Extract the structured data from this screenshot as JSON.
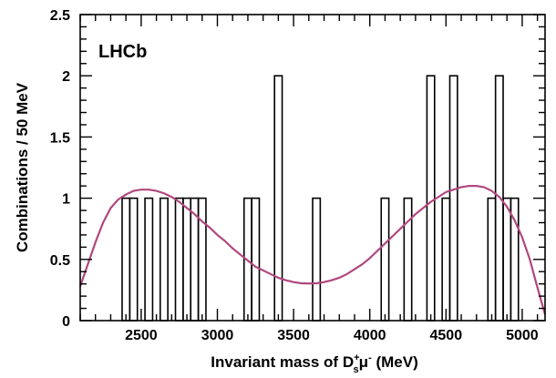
{
  "chart_data": {
    "type": "bar",
    "experiment_label": "LHCb",
    "xlabel_main": "Invariant mass of D",
    "xlabel_sup": "+",
    "xlabel_sub": "s",
    "xlabel_mu": "μ",
    "xlabel_mu_sup": "-",
    "xlabel_units": " (MeV)",
    "ylabel": "Combinations / 50 MeV",
    "xlim": [
      2100,
      5150
    ],
    "ylim": [
      0,
      2.5
    ],
    "bin_width": 50,
    "x_ticks": [
      2500,
      3000,
      3500,
      4000,
      4500,
      5000
    ],
    "x_tick_labels": [
      "2500",
      "3000",
      "3500",
      "4000",
      "4500",
      "5000"
    ],
    "y_ticks": [
      0,
      0.5,
      1,
      1.5,
      2,
      2.5
    ],
    "y_tick_labels": [
      "0",
      "0.5",
      "1",
      "1.5",
      "2",
      "2.5"
    ],
    "histogram_bins": [
      {
        "low": 2375,
        "high": 2425,
        "count": 1
      },
      {
        "low": 2425,
        "high": 2475,
        "count": 1
      },
      {
        "low": 2525,
        "high": 2575,
        "count": 1
      },
      {
        "low": 2625,
        "high": 2675,
        "count": 1
      },
      {
        "low": 2725,
        "high": 2775,
        "count": 1
      },
      {
        "low": 2775,
        "high": 2825,
        "count": 1
      },
      {
        "low": 2825,
        "high": 2875,
        "count": 1
      },
      {
        "low": 2875,
        "high": 2925,
        "count": 1
      },
      {
        "low": 3175,
        "high": 3225,
        "count": 1
      },
      {
        "low": 3225,
        "high": 3275,
        "count": 1
      },
      {
        "low": 3375,
        "high": 3425,
        "count": 2
      },
      {
        "low": 3625,
        "high": 3675,
        "count": 1
      },
      {
        "low": 4075,
        "high": 4125,
        "count": 1
      },
      {
        "low": 4225,
        "high": 4275,
        "count": 1
      },
      {
        "low": 4375,
        "high": 4425,
        "count": 2
      },
      {
        "low": 4475,
        "high": 4525,
        "count": 1
      },
      {
        "low": 4525,
        "high": 4575,
        "count": 2
      },
      {
        "low": 4775,
        "high": 4825,
        "count": 1
      },
      {
        "low": 4825,
        "high": 4875,
        "count": 2
      },
      {
        "low": 4875,
        "high": 4925,
        "count": 1
      },
      {
        "low": 4925,
        "high": 4975,
        "count": 1
      }
    ],
    "fit_curve": {
      "color": "#b0477f",
      "points": [
        [
          2100,
          0.28
        ],
        [
          2150,
          0.46
        ],
        [
          2200,
          0.64
        ],
        [
          2250,
          0.8
        ],
        [
          2300,
          0.92
        ],
        [
          2350,
          0.99
        ],
        [
          2400,
          1.03
        ],
        [
          2450,
          1.06
        ],
        [
          2500,
          1.07
        ],
        [
          2550,
          1.07
        ],
        [
          2600,
          1.06
        ],
        [
          2650,
          1.04
        ],
        [
          2700,
          1.01
        ],
        [
          2750,
          0.97
        ],
        [
          2800,
          0.92
        ],
        [
          2850,
          0.87
        ],
        [
          2900,
          0.81
        ],
        [
          2950,
          0.76
        ],
        [
          3000,
          0.7
        ],
        [
          3050,
          0.65
        ],
        [
          3100,
          0.59
        ],
        [
          3150,
          0.54
        ],
        [
          3200,
          0.49
        ],
        [
          3250,
          0.44
        ],
        [
          3300,
          0.41
        ],
        [
          3350,
          0.38
        ],
        [
          3400,
          0.35
        ],
        [
          3450,
          0.33
        ],
        [
          3500,
          0.315
        ],
        [
          3550,
          0.305
        ],
        [
          3600,
          0.303
        ],
        [
          3650,
          0.305
        ],
        [
          3700,
          0.315
        ],
        [
          3750,
          0.33
        ],
        [
          3800,
          0.35
        ],
        [
          3850,
          0.38
        ],
        [
          3900,
          0.42
        ],
        [
          3950,
          0.46
        ],
        [
          4000,
          0.51
        ],
        [
          4050,
          0.57
        ],
        [
          4100,
          0.63
        ],
        [
          4150,
          0.69
        ],
        [
          4200,
          0.75
        ],
        [
          4250,
          0.81
        ],
        [
          4300,
          0.87
        ],
        [
          4350,
          0.92
        ],
        [
          4400,
          0.97
        ],
        [
          4450,
          1.01
        ],
        [
          4500,
          1.05
        ],
        [
          4550,
          1.07
        ],
        [
          4600,
          1.09
        ],
        [
          4650,
          1.1
        ],
        [
          4700,
          1.1
        ],
        [
          4750,
          1.09
        ],
        [
          4800,
          1.06
        ],
        [
          4850,
          1.01
        ],
        [
          4900,
          0.93
        ],
        [
          4950,
          0.82
        ],
        [
          5000,
          0.68
        ],
        [
          5050,
          0.5
        ],
        [
          5100,
          0.27
        ],
        [
          5150,
          0.05
        ]
      ]
    }
  }
}
